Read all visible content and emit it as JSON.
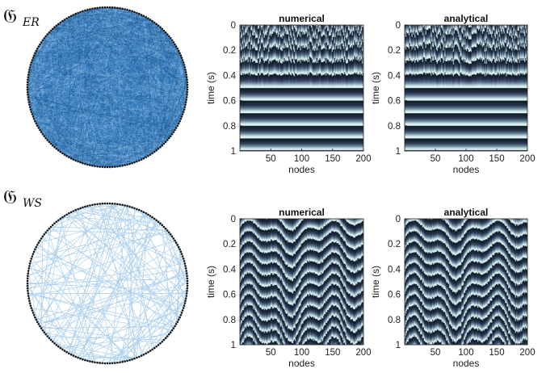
{
  "rows": [
    {
      "graph_symbol": "𝔊",
      "graph_subscript": "ER",
      "graph_style": "dense-random",
      "edge_color": "#1f6fb8",
      "panels": [
        {
          "title": "numerical",
          "pattern": "er"
        },
        {
          "title": "analytical",
          "pattern": "er"
        }
      ]
    },
    {
      "graph_symbol": "𝔊",
      "graph_subscript": "WS",
      "graph_style": "sparse-small-world",
      "edge_color": "#7fb6e0",
      "panels": [
        {
          "title": "numerical",
          "pattern": "ws"
        },
        {
          "title": "analytical",
          "pattern": "ws"
        }
      ]
    }
  ],
  "axes": {
    "ylabel": "time (s)",
    "xlabel": "nodes",
    "x_ticks": [
      "50",
      "100",
      "150",
      "200"
    ],
    "x_tick_values": [
      50,
      100,
      150,
      200
    ],
    "x_range": [
      0,
      200
    ],
    "y_ticks": [
      "0",
      "0.2",
      "0.4",
      "0.6",
      "0.8",
      "1"
    ],
    "y_tick_values": [
      0,
      0.2,
      0.4,
      0.6,
      0.8,
      1
    ],
    "y_range": [
      0,
      1
    ]
  },
  "colormap": [
    "#0d1b2a",
    "#2e3c55",
    "#6f8aa0",
    "#c9e6e6",
    "#f4fbfb"
  ]
}
